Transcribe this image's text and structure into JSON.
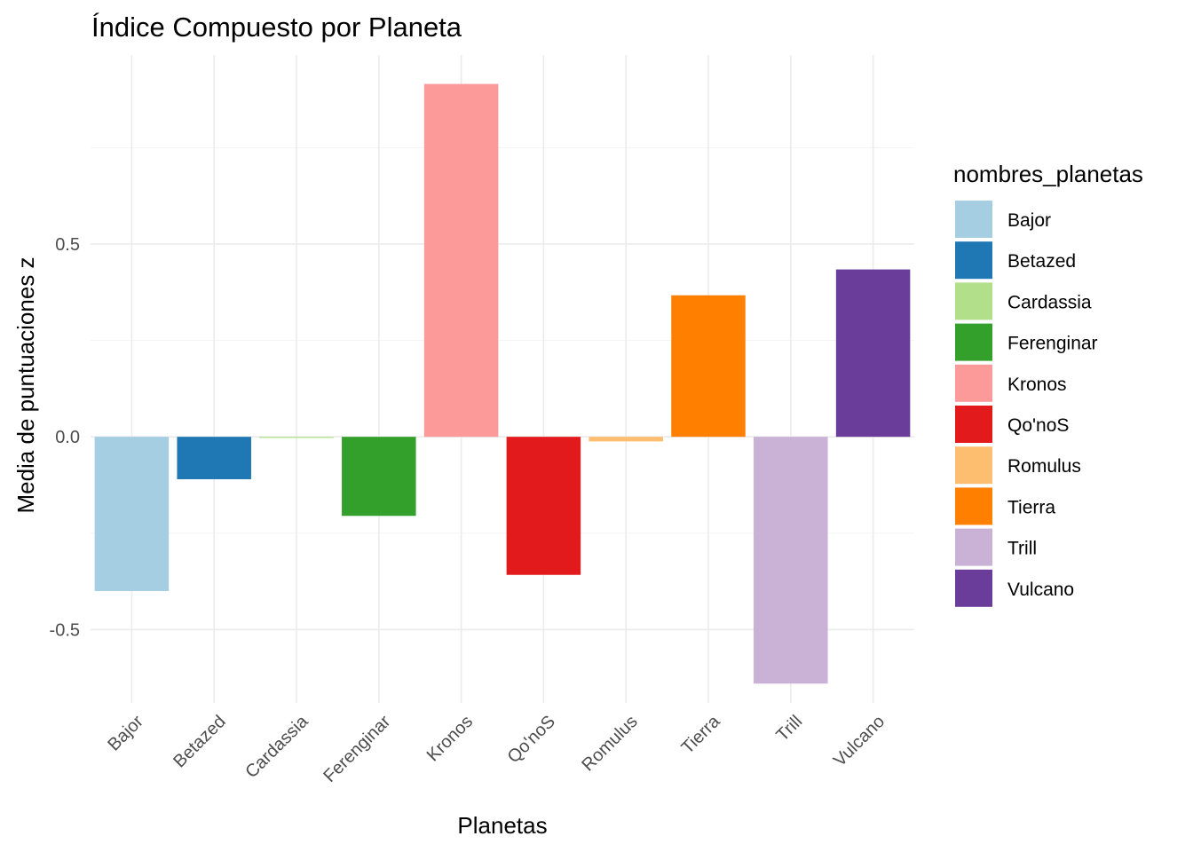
{
  "chart_data": {
    "type": "bar",
    "title": "Índice Compuesto por Planeta",
    "xlabel": "Planetas",
    "ylabel": "Media de puntuaciones z",
    "categories": [
      "Bajor",
      "Betazed",
      "Cardassia",
      "Ferenginar",
      "Kronos",
      "Qo'noS",
      "Romulus",
      "Tierra",
      "Trill",
      "Vulcano"
    ],
    "values": [
      -0.4,
      -0.11,
      -0.003,
      -0.205,
      0.915,
      -0.358,
      -0.012,
      0.367,
      -0.64,
      0.434
    ],
    "colors": [
      "#A6CEE3",
      "#1F78B4",
      "#B2DF8A",
      "#33A02C",
      "#FB9A99",
      "#E31A1C",
      "#FDBF6F",
      "#FF7F00",
      "#CAB2D6",
      "#6A3D9A"
    ],
    "yticks": [
      -0.5,
      0.0,
      0.5
    ],
    "ytick_labels": [
      "-0.5",
      "0.0",
      "0.5"
    ],
    "ylim": [
      -0.69,
      0.99
    ],
    "grid": true,
    "legend": {
      "title": "nombres_planetas",
      "placement": "right",
      "entries": [
        "Bajor",
        "Betazed",
        "Cardassia",
        "Ferenginar",
        "Kronos",
        "Qo'noS",
        "Romulus",
        "Tierra",
        "Trill",
        "Vulcano"
      ]
    }
  }
}
